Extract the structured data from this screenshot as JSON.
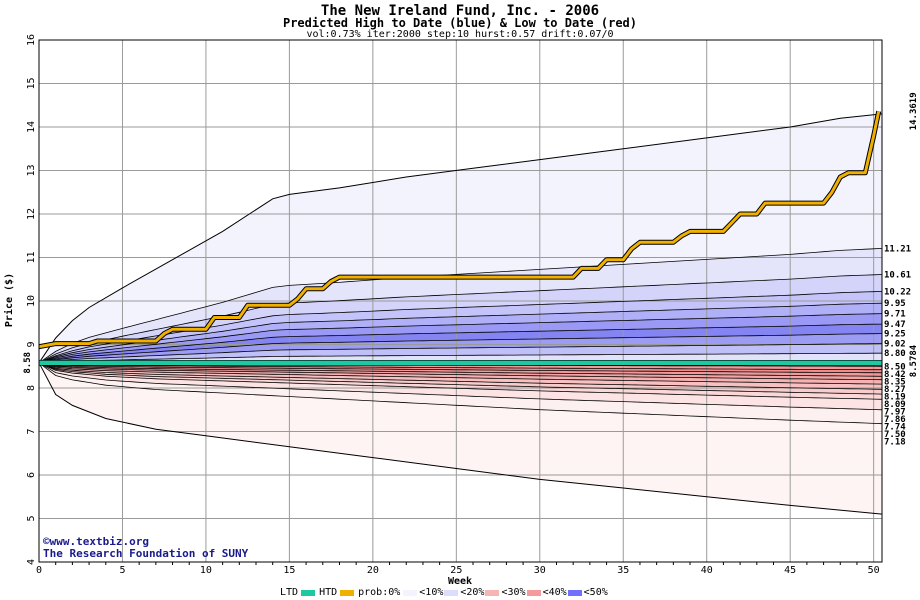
{
  "chart_data": {
    "type": "area",
    "title": "The New Ireland Fund, Inc. - 2006",
    "subtitle": "Predicted High to Date (blue) &  Low to Date (red)",
    "params": "vol:0.73% iter:2000 step:10 hurst:0.57 drift:0.07/0",
    "xlabel": "Week",
    "ylabel": "Price ($)",
    "xlim": [
      0,
      50.5
    ],
    "ylim": [
      4,
      16
    ],
    "xticks": [
      0,
      5,
      10,
      15,
      20,
      25,
      30,
      35,
      40,
      45,
      50
    ],
    "yticks": [
      4,
      5,
      6,
      7,
      8,
      9,
      10,
      11,
      12,
      13,
      14,
      15,
      16
    ],
    "start_price": 8.58,
    "start_label": "8.58",
    "end_htd_label": "14.3619",
    "end_ltd_label": "8.5784",
    "high_envelope": [
      [
        0,
        8.58
      ],
      [
        1,
        9.15
      ],
      [
        2,
        9.55
      ],
      [
        3,
        9.85
      ],
      [
        5,
        10.3
      ],
      [
        8,
        10.95
      ],
      [
        11,
        11.6
      ],
      [
        14,
        12.35
      ],
      [
        15,
        12.45
      ],
      [
        18,
        12.6
      ],
      [
        22,
        12.85
      ],
      [
        26,
        13.05
      ],
      [
        30,
        13.25
      ],
      [
        35,
        13.5
      ],
      [
        40,
        13.75
      ],
      [
        45,
        14.0
      ],
      [
        48,
        14.2
      ],
      [
        50.5,
        14.3
      ]
    ],
    "low_envelope": [
      [
        0,
        8.58
      ],
      [
        1,
        7.85
      ],
      [
        2,
        7.6
      ],
      [
        4,
        7.3
      ],
      [
        7,
        7.05
      ],
      [
        10,
        6.9
      ],
      [
        15,
        6.65
      ],
      [
        20,
        6.4
      ],
      [
        25,
        6.15
      ],
      [
        30,
        5.9
      ],
      [
        35,
        5.7
      ],
      [
        40,
        5.5
      ],
      [
        45,
        5.3
      ],
      [
        50.5,
        5.1
      ]
    ],
    "high_quantiles": [
      11.21,
      10.61,
      10.22,
      9.95,
      9.71,
      9.47,
      9.25,
      9.02,
      8.8
    ],
    "low_quantiles": [
      8.5,
      8.42,
      8.35,
      8.27,
      8.19,
      8.09,
      7.97,
      7.86,
      7.74,
      7.5,
      7.18
    ],
    "right_labels": [
      "11.21",
      "10.61",
      "10.22",
      "9.95",
      "9.71",
      "9.47",
      "9.25",
      "9.02",
      "8.80",
      "8.50",
      "8.42",
      "8.35",
      "8.27",
      "8.19",
      "8.09",
      "7.97",
      "7.86",
      "7.74",
      "7.50",
      "7.18"
    ],
    "htd_path": [
      [
        0,
        8.95
      ],
      [
        1,
        9.02
      ],
      [
        3,
        9.02
      ],
      [
        3.5,
        9.08
      ],
      [
        7,
        9.08
      ],
      [
        7.5,
        9.25
      ],
      [
        8,
        9.35
      ],
      [
        10,
        9.35
      ],
      [
        10.5,
        9.62
      ],
      [
        12,
        9.62
      ],
      [
        12.5,
        9.9
      ],
      [
        15,
        9.9
      ],
      [
        15.5,
        10.05
      ],
      [
        16,
        10.28
      ],
      [
        17,
        10.28
      ],
      [
        17.5,
        10.45
      ],
      [
        18,
        10.55
      ],
      [
        32,
        10.55
      ],
      [
        32.5,
        10.75
      ],
      [
        33.5,
        10.75
      ],
      [
        34,
        10.95
      ],
      [
        35,
        10.95
      ],
      [
        35.5,
        11.2
      ],
      [
        36,
        11.35
      ],
      [
        38,
        11.35
      ],
      [
        38.5,
        11.5
      ],
      [
        39,
        11.6
      ],
      [
        41,
        11.6
      ],
      [
        41.5,
        11.8
      ],
      [
        42,
        12.0
      ],
      [
        43,
        12.0
      ],
      [
        43.5,
        12.25
      ],
      [
        47,
        12.25
      ],
      [
        47.5,
        12.5
      ],
      [
        48,
        12.85
      ],
      [
        48.5,
        12.95
      ],
      [
        49.5,
        12.95
      ],
      [
        50,
        13.8
      ],
      [
        50.3,
        14.36
      ]
    ],
    "ltd_level": 8.5784,
    "series_colors": {
      "ltd": "#1ec8a0",
      "htd": "#f0b000",
      "high": "#6a6aff",
      "low": "#ff6a6a"
    },
    "legend": {
      "ltd": "LTD",
      "htd": "HTD",
      "prob": "prob:0%",
      "bins": [
        {
          "label": "<10%",
          "color": "#f3f3fd"
        },
        {
          "label": "<20%",
          "color": "#dcdcff"
        },
        {
          "label": "<30%",
          "color": "#f5b5b5"
        },
        {
          "label": "<40%",
          "color": "#f59a9a"
        },
        {
          "label": "<50%",
          "color": "#7070ff"
        }
      ]
    },
    "credits": [
      "©www.textbiz.org",
      "The Research Foundation of SUNY"
    ]
  }
}
